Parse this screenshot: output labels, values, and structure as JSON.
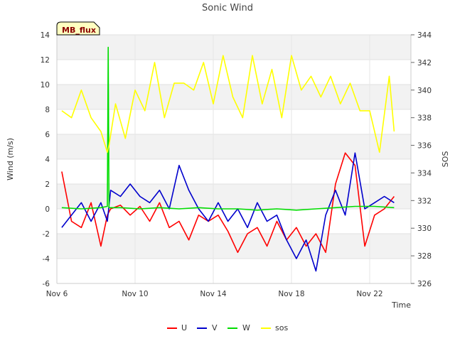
{
  "chart_data": {
    "type": "line",
    "title": "Sonic Wind",
    "xlabel": "Time",
    "ylabel_left": "Wind (m/s)",
    "ylabel_right": "SOS",
    "badge": "MB_flux",
    "x_domain": [
      "2023-11-06",
      "2023-11-23"
    ],
    "x_ticks": [
      {
        "label": "Nov 6",
        "date": "2023-11-06"
      },
      {
        "label": "Nov 10",
        "date": "2023-11-10"
      },
      {
        "label": "Nov 14",
        "date": "2023-11-14"
      },
      {
        "label": "Nov 18",
        "date": "2023-11-18"
      },
      {
        "label": "Nov 22",
        "date": "2023-11-22"
      }
    ],
    "ylim_left": [
      -6,
      14
    ],
    "yticks_left": [
      "-6",
      "-4",
      "-2",
      "0",
      "2",
      "4",
      "6",
      "8",
      "10",
      "12",
      "14"
    ],
    "ylim_right": [
      326,
      344
    ],
    "yticks_right": [
      "326",
      "328",
      "330",
      "332",
      "334",
      "336",
      "338",
      "340",
      "342",
      "344"
    ],
    "grid": "horizontal bands",
    "legend_position": "bottom",
    "series": [
      {
        "name": "U",
        "color": "#ff0000",
        "axis": "left",
        "x": [
          "2023-11-06T06:00",
          "2023-11-06T18:00",
          "2023-11-07T06:00",
          "2023-11-07T18:00",
          "2023-11-08T06:00",
          "2023-11-08T14:00",
          "2023-11-08T18:00",
          "2023-11-09T06:00",
          "2023-11-09T18:00",
          "2023-11-10T06:00",
          "2023-11-10T18:00",
          "2023-11-11T06:00",
          "2023-11-11T18:00",
          "2023-11-12T06:00",
          "2023-11-12T18:00",
          "2023-11-13T06:00",
          "2023-11-13T18:00",
          "2023-11-14T06:00",
          "2023-11-14T18:00",
          "2023-11-15T06:00",
          "2023-11-15T18:00",
          "2023-11-16T06:00",
          "2023-11-16T18:00",
          "2023-11-17T06:00",
          "2023-11-17T18:00",
          "2023-11-18T06:00",
          "2023-11-18T18:00",
          "2023-11-19T06:00",
          "2023-11-19T18:00",
          "2023-11-20T06:00",
          "2023-11-20T18:00",
          "2023-11-21T06:00",
          "2023-11-21T18:00",
          "2023-11-22T06:00",
          "2023-11-22T18:00",
          "2023-11-23T06:00"
        ],
        "y": [
          3.0,
          -1.0,
          -1.5,
          0.5,
          -3.0,
          -0.5,
          0.0,
          0.3,
          -0.5,
          0.2,
          -1.0,
          0.5,
          -1.5,
          -1.0,
          -2.5,
          -0.5,
          -1.0,
          -0.5,
          -1.8,
          -3.5,
          -2.0,
          -1.5,
          -3.0,
          -1.0,
          -2.5,
          -1.5,
          -3.0,
          -2.0,
          -3.5,
          2.0,
          4.5,
          3.5,
          -3.0,
          -0.5,
          0.0,
          1.0
        ]
      },
      {
        "name": "V",
        "color": "#0000cc",
        "axis": "left",
        "x": [
          "2023-11-06T06:00",
          "2023-11-06T18:00",
          "2023-11-07T06:00",
          "2023-11-07T18:00",
          "2023-11-08T06:00",
          "2023-11-08T14:00",
          "2023-11-08T18:00",
          "2023-11-09T06:00",
          "2023-11-09T18:00",
          "2023-11-10T06:00",
          "2023-11-10T18:00",
          "2023-11-11T06:00",
          "2023-11-11T18:00",
          "2023-11-12T06:00",
          "2023-11-12T18:00",
          "2023-11-13T06:00",
          "2023-11-13T18:00",
          "2023-11-14T06:00",
          "2023-11-14T18:00",
          "2023-11-15T06:00",
          "2023-11-15T18:00",
          "2023-11-16T06:00",
          "2023-11-16T18:00",
          "2023-11-17T06:00",
          "2023-11-17T18:00",
          "2023-11-18T06:00",
          "2023-11-18T18:00",
          "2023-11-19T06:00",
          "2023-11-19T18:00",
          "2023-11-20T06:00",
          "2023-11-20T18:00",
          "2023-11-21T06:00",
          "2023-11-21T18:00",
          "2023-11-22T06:00",
          "2023-11-22T18:00",
          "2023-11-23T06:00"
        ],
        "y": [
          -1.5,
          -0.5,
          0.5,
          -1.0,
          0.5,
          -1.0,
          1.5,
          1.0,
          2.0,
          1.0,
          0.5,
          1.5,
          0.0,
          3.5,
          1.5,
          0.0,
          -1.0,
          0.5,
          -1.0,
          0.0,
          -1.5,
          0.5,
          -1.0,
          -0.5,
          -2.5,
          -4.0,
          -2.5,
          -5.0,
          -0.5,
          1.5,
          -0.5,
          4.5,
          0.0,
          0.5,
          1.0,
          0.5
        ]
      },
      {
        "name": "W",
        "color": "#00dd00",
        "axis": "left",
        "x": [
          "2023-11-06T06:00",
          "2023-11-07T06:00",
          "2023-11-08T06:00",
          "2023-11-08T14:00",
          "2023-11-08T15:00",
          "2023-11-08T16:00",
          "2023-11-09T06:00",
          "2023-11-10T06:00",
          "2023-11-11T06:00",
          "2023-11-12T06:00",
          "2023-11-13T06:00",
          "2023-11-14T06:00",
          "2023-11-15T06:00",
          "2023-11-16T06:00",
          "2023-11-17T06:00",
          "2023-11-18T06:00",
          "2023-11-19T06:00",
          "2023-11-20T06:00",
          "2023-11-21T06:00",
          "2023-11-22T06:00",
          "2023-11-23T06:00"
        ],
        "y": [
          0.1,
          0.0,
          0.1,
          0.2,
          13.0,
          0.1,
          0.1,
          0.0,
          0.1,
          0.0,
          0.1,
          0.0,
          0.0,
          -0.1,
          0.0,
          -0.1,
          0.0,
          0.1,
          0.2,
          0.2,
          0.1
        ]
      },
      {
        "name": "sos",
        "color": "#ffff00",
        "axis": "right",
        "x": [
          "2023-11-06T06:00",
          "2023-11-06T18:00",
          "2023-11-07T06:00",
          "2023-11-07T18:00",
          "2023-11-08T06:00",
          "2023-11-08T14:00",
          "2023-11-08T16:00",
          "2023-11-09T00:00",
          "2023-11-09T12:00",
          "2023-11-10T00:00",
          "2023-11-10T12:00",
          "2023-11-11T00:00",
          "2023-11-11T12:00",
          "2023-11-12T00:00",
          "2023-11-12T12:00",
          "2023-11-13T00:00",
          "2023-11-13T12:00",
          "2023-11-14T00:00",
          "2023-11-14T12:00",
          "2023-11-15T00:00",
          "2023-11-15T12:00",
          "2023-11-16T00:00",
          "2023-11-16T12:00",
          "2023-11-17T00:00",
          "2023-11-17T12:00",
          "2023-11-18T00:00",
          "2023-11-18T12:00",
          "2023-11-19T00:00",
          "2023-11-19T12:00",
          "2023-11-20T00:00",
          "2023-11-20T12:00",
          "2023-11-21T00:00",
          "2023-11-21T12:00",
          "2023-11-22T00:00",
          "2023-11-22T12:00",
          "2023-11-23T00:00",
          "2023-11-23T06:00"
        ],
        "y": [
          338.5,
          338.0,
          340.0,
          338.0,
          337.0,
          335.5,
          336.0,
          339.0,
          336.5,
          340.0,
          338.5,
          342.0,
          338.0,
          340.5,
          340.5,
          340.0,
          342.0,
          339.0,
          342.5,
          339.5,
          338.0,
          342.5,
          339.0,
          341.5,
          338.0,
          342.5,
          340.0,
          341.0,
          339.5,
          341.0,
          339.0,
          340.5,
          338.5,
          338.5,
          335.5,
          341.0,
          337.0
        ]
      }
    ]
  }
}
